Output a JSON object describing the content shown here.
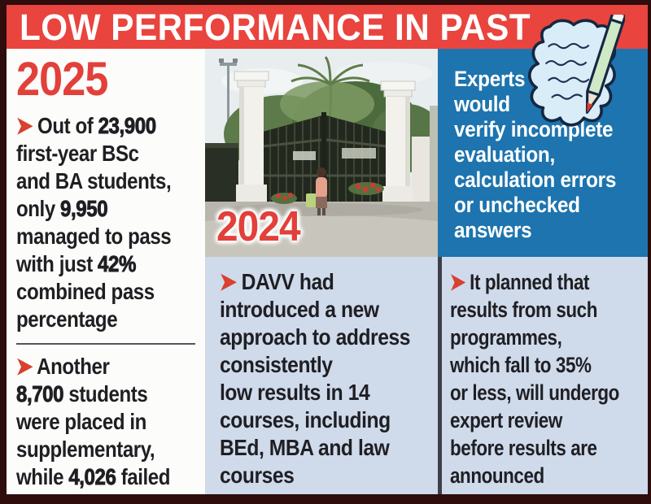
{
  "header": {
    "title": "LOW PERFORMANCE IN PAST"
  },
  "left_panel": {
    "year": "2025",
    "para1_lines": [
      [
        {
          "t": "➤ ",
          "k": "bullet"
        },
        {
          "t": "Out of ",
          "k": "text"
        },
        {
          "t": "23,900",
          "k": "num"
        }
      ],
      [
        {
          "t": "first-year BSc",
          "k": "text"
        }
      ],
      [
        {
          "t": "and BA students,",
          "k": "text"
        }
      ],
      [
        {
          "t": "only ",
          "k": "text"
        },
        {
          "t": "9,950",
          "k": "num"
        }
      ],
      [
        {
          "t": "managed to pass",
          "k": "text"
        }
      ],
      [
        {
          "t": "with just ",
          "k": "text"
        },
        {
          "t": "42%",
          "k": "num"
        }
      ],
      [
        {
          "t": "combined pass",
          "k": "text"
        }
      ],
      [
        {
          "t": "percentage",
          "k": "text"
        }
      ]
    ],
    "para2_lines": [
      [
        {
          "t": "➤ ",
          "k": "bullet"
        },
        {
          "t": "Another",
          "k": "text"
        }
      ],
      [
        {
          "t": "8,700",
          "k": "num"
        },
        {
          "t": " students",
          "k": "text"
        }
      ],
      [
        {
          "t": "were placed in",
          "k": "text"
        }
      ],
      [
        {
          "t": "supplementary,",
          "k": "text"
        }
      ],
      [
        {
          "t": "while ",
          "k": "text"
        },
        {
          "t": "4,026",
          "k": "num"
        },
        {
          "t": " failed",
          "k": "text"
        }
      ]
    ]
  },
  "middle_panel": {
    "year": "2024",
    "lines": [
      [
        {
          "t": "➤ ",
          "k": "bullet"
        },
        {
          "t": "DAVV had",
          "k": "text"
        }
      ],
      [
        {
          "t": "introduced a new",
          "k": "text"
        }
      ],
      [
        {
          "t": "approach to address",
          "k": "text"
        }
      ],
      [
        {
          "t": "consistently",
          "k": "text"
        }
      ],
      [
        {
          "t": "low results in 14",
          "k": "text"
        }
      ],
      [
        {
          "t": "courses, including",
          "k": "text"
        }
      ],
      [
        {
          "t": "BEd, MBA and law",
          "k": "text"
        }
      ],
      [
        {
          "t": "courses",
          "k": "text"
        }
      ]
    ]
  },
  "right_panel": {
    "note_lines": [
      [
        {
          "t": "Experts",
          "k": "text"
        }
      ],
      [
        {
          "t": "would",
          "k": "text"
        }
      ],
      [
        {
          "t": "verify incomplete",
          "k": "text"
        }
      ],
      [
        {
          "t": "evaluation,",
          "k": "text"
        }
      ],
      [
        {
          "t": "calculation errors",
          "k": "text"
        }
      ],
      [
        {
          "t": "or unchecked",
          "k": "text"
        }
      ],
      [
        {
          "t": "answers",
          "k": "text"
        }
      ]
    ],
    "detail_lines": [
      [
        {
          "t": "➤ ",
          "k": "bullet"
        },
        {
          "t": "It planned that",
          "k": "text"
        }
      ],
      [
        {
          "t": "results from such",
          "k": "text"
        }
      ],
      [
        {
          "t": "programmes,",
          "k": "text"
        }
      ],
      [
        {
          "t": "which fall to 35%",
          "k": "text"
        }
      ],
      [
        {
          "t": "or less, will undergo",
          "k": "text"
        }
      ],
      [
        {
          "t": "expert review",
          "k": "text"
        }
      ],
      [
        {
          "t": "before results are",
          "k": "text"
        }
      ],
      [
        {
          "t": "announced",
          "k": "text"
        }
      ]
    ]
  },
  "icons": {
    "arrow-bullet-icon": "➤",
    "note-and-pencil-illustration": "paper note with squiggle lines and pencil"
  },
  "colors": {
    "frame_border": "#2e0d0c",
    "band_red": "#e9443e",
    "accent_red": "#e2403a",
    "bullet_red": "#d8402f",
    "deep_blue": "#1d74ae",
    "light_blue": "#cfdaeb",
    "text_dark": "#1f1f23"
  }
}
